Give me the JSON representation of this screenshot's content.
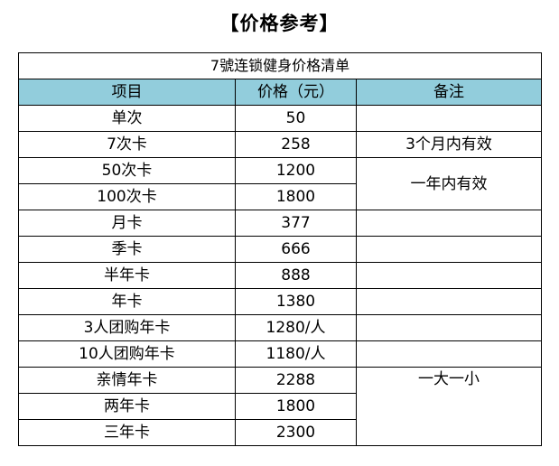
{
  "title": "【价格参考】",
  "table": {
    "caption": "7號连锁健身价格清单",
    "headers": {
      "item": "项目",
      "price": "价格（元）",
      "note": "备注"
    },
    "rows": [
      {
        "item": "单次",
        "price": "50"
      },
      {
        "item": "7次卡",
        "price": "258"
      },
      {
        "item": "50次卡",
        "price": "1200"
      },
      {
        "item": "100次卡",
        "price": "1800"
      },
      {
        "item": "月卡",
        "price": "377"
      },
      {
        "item": "季卡",
        "price": "666"
      },
      {
        "item": "半年卡",
        "price": "888"
      },
      {
        "item": "年卡",
        "price": "1380"
      },
      {
        "item": "3人团购年卡",
        "price": "1280/人"
      },
      {
        "item": "10人团购年卡",
        "price": "1180/人"
      },
      {
        "item": "亲情年卡",
        "price": "2288"
      },
      {
        "item": "两年卡",
        "price": "1800"
      },
      {
        "item": "三年卡",
        "price": "2300"
      }
    ],
    "notes": {
      "seven_pass": "3个月内有效",
      "multi_pass": "一年内有效",
      "family": "一大一小"
    }
  }
}
